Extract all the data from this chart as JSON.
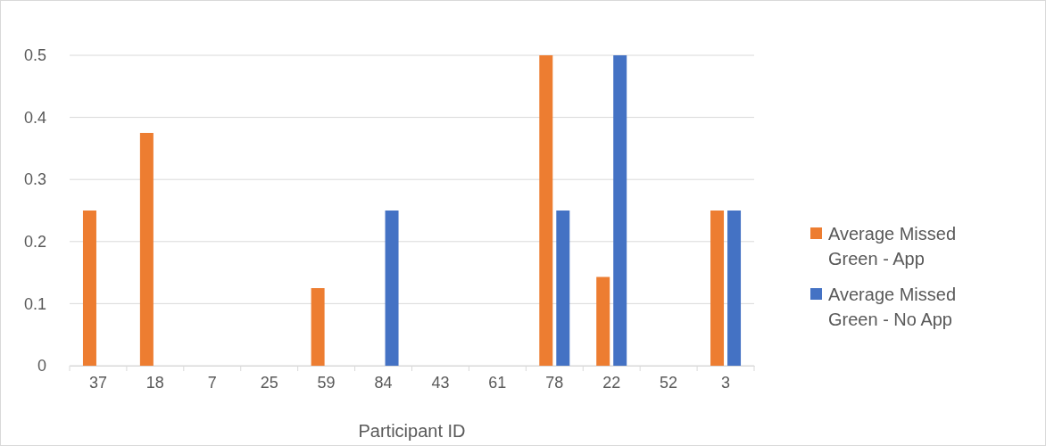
{
  "chart_data": {
    "type": "bar",
    "xlabel": "Participant ID",
    "categories": [
      "37",
      "18",
      "7",
      "25",
      "59",
      "84",
      "43",
      "61",
      "78",
      "22",
      "52",
      "3"
    ],
    "series": [
      {
        "name": "Average Missed Green - App",
        "color": "#ed7d31",
        "values": [
          0.25,
          0.375,
          0,
          0,
          0.125,
          0,
          0,
          0,
          0.5,
          0.143,
          0,
          0.25
        ]
      },
      {
        "name": "Average Missed Green - No App",
        "color": "#4472c4",
        "values": [
          0,
          0,
          0,
          0,
          0,
          0.25,
          0,
          0,
          0.25,
          0.5,
          0,
          0.25
        ]
      }
    ],
    "ylim": [
      0,
      0.5
    ],
    "yticks": [
      0,
      0.1,
      0.2,
      0.3,
      0.4,
      0.5
    ],
    "grid": "y",
    "legend": "right"
  }
}
